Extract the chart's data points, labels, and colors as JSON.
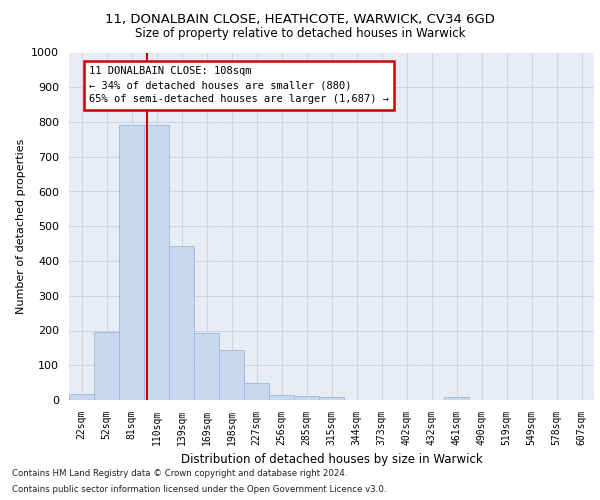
{
  "title_line1": "11, DONALBAIN CLOSE, HEATHCOTE, WARWICK, CV34 6GD",
  "title_line2": "Size of property relative to detached houses in Warwick",
  "xlabel": "Distribution of detached houses by size in Warwick",
  "ylabel": "Number of detached properties",
  "footnote1": "Contains HM Land Registry data © Crown copyright and database right 2024.",
  "footnote2": "Contains public sector information licensed under the Open Government Licence v3.0.",
  "bin_labels": [
    "22sqm",
    "52sqm",
    "81sqm",
    "110sqm",
    "139sqm",
    "169sqm",
    "198sqm",
    "227sqm",
    "256sqm",
    "285sqm",
    "315sqm",
    "344sqm",
    "373sqm",
    "402sqm",
    "432sqm",
    "461sqm",
    "490sqm",
    "519sqm",
    "549sqm",
    "578sqm",
    "607sqm"
  ],
  "bar_values": [
    17,
    195,
    790,
    790,
    443,
    193,
    143,
    48,
    15,
    12,
    8,
    0,
    0,
    0,
    0,
    8,
    0,
    0,
    0,
    0,
    0
  ],
  "bar_color": "#c8d9ef",
  "bar_edge_color": "#9ab8d8",
  "vline_bin_index": 2.62,
  "annotation_text_line1": "11 DONALBAIN CLOSE: 108sqm",
  "annotation_text_line2": "← 34% of detached houses are smaller (880)",
  "annotation_text_line3": "65% of semi-detached houses are larger (1,687) →",
  "annotation_box_color": "#ffffff",
  "annotation_box_edge_color": "#cc0000",
  "vline_color": "#cc0000",
  "ylim": [
    0,
    1000
  ],
  "yticks": [
    0,
    100,
    200,
    300,
    400,
    500,
    600,
    700,
    800,
    900,
    1000
  ],
  "grid_color": "#ccd4e4",
  "background_color": "#e8edf5"
}
